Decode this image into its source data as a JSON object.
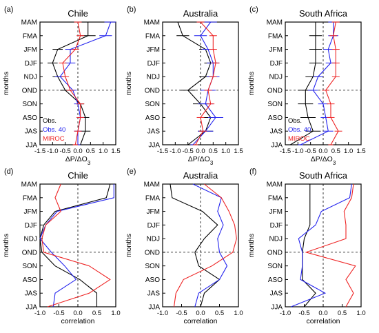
{
  "colors": {
    "obs": "#000000",
    "obs40": "#2222ee",
    "miroc": "#ee2222",
    "axis": "#000000"
  },
  "chart_data": [
    {
      "type": "line",
      "panel_label": "(a)",
      "title": "Chile",
      "xlabel": "ΔP/ΔO3",
      "ylabel": "months",
      "xlim": [
        -1.5,
        1.5
      ],
      "xticks": [
        -1.5,
        -1.0,
        -0.5,
        0.0,
        0.5,
        1.0,
        1.5
      ],
      "tick_labels": [
        "-1.5",
        "-1.0",
        "-0.5",
        "0.0",
        "0.5",
        "1.0",
        "1.5"
      ],
      "categories": [
        "MAM",
        "FMA",
        "JFM",
        "DJF",
        "NDJ",
        "OND",
        "SON",
        "ASO",
        "JAS",
        "JJA"
      ],
      "legend": [
        "Obs.",
        "Obs. 40",
        "MIROC"
      ],
      "series": [
        {
          "name": "Obs.",
          "values": [
            0.4,
            0.4,
            -0.8,
            -1.0,
            -0.8,
            -0.5,
            0.1,
            0.3,
            0.3,
            0.1
          ],
          "errors": [
            0.3,
            0.3,
            0.2,
            0.2,
            0.2,
            0.2,
            0.15,
            0.15,
            0.2,
            0.1
          ]
        },
        {
          "name": "Obs. 40",
          "values": [
            1.3,
            1.1,
            -0.3,
            -0.3,
            -0.7,
            -0.2,
            0.0,
            0.1,
            0.0,
            0.0
          ],
          "errors": [
            0.25,
            0.25,
            0.2,
            0.2,
            0.2,
            0.15,
            0.15,
            0.15,
            0.15,
            0.1
          ]
        },
        {
          "name": "MIROC",
          "values": [
            0.0,
            0.1,
            -0.1,
            -0.6,
            -0.5,
            -0.3,
            0.1,
            0.1,
            0.0,
            -0.1
          ],
          "errors": [
            0.15,
            0.15,
            0.15,
            0.15,
            0.15,
            0.15,
            0.15,
            0.15,
            0.15,
            0.1
          ]
        }
      ]
    },
    {
      "type": "line",
      "panel_label": "(b)",
      "title": "Australia",
      "xlabel": "ΔP/ΔO3",
      "ylabel": "months",
      "xlim": [
        -1.5,
        1.5
      ],
      "xticks": [
        -1.5,
        -1.0,
        -0.5,
        0.0,
        0.5,
        1.0,
        1.5
      ],
      "tick_labels": [
        "-1.5",
        "-1.0",
        "-0.5",
        "0.0",
        "0.5",
        "1.0",
        "1.5"
      ],
      "categories": [
        "MAM",
        "FMA",
        "JFM",
        "DJF",
        "NDJ",
        "OND",
        "SON",
        "ASO",
        "JAS",
        "JJA"
      ],
      "legend": [],
      "series": [
        {
          "name": "Obs.",
          "values": [
            -0.9,
            -0.7,
            0.2,
            0.4,
            0.2,
            -0.5,
            0.0,
            0.4,
            0.2,
            -0.5
          ],
          "errors": [
            0.25,
            0.25,
            0.25,
            0.25,
            0.25,
            0.3,
            0.3,
            0.3,
            0.3,
            0.1
          ]
        },
        {
          "name": "Obs. 40",
          "values": [
            0.4,
            0.0,
            0.3,
            0.5,
            0.5,
            0.3,
            0.2,
            0.6,
            0.2,
            -0.3
          ],
          "errors": [
            0.25,
            0.25,
            0.25,
            0.25,
            0.25,
            0.3,
            0.3,
            0.3,
            0.3,
            0.1
          ]
        },
        {
          "name": "MIROC",
          "values": [
            0.0,
            0.5,
            0.5,
            0.6,
            0.5,
            0.3,
            0.4,
            0.0,
            0.1,
            -0.2
          ],
          "errors": [
            0.15,
            0.15,
            0.15,
            0.15,
            0.15,
            0.15,
            0.15,
            0.15,
            0.15,
            0.1
          ]
        }
      ]
    },
    {
      "type": "line",
      "panel_label": "(c)",
      "title": "South Africa",
      "xlabel": "ΔP/ΔO3",
      "ylabel": "months",
      "xlim": [
        -1.5,
        1.5
      ],
      "xticks": [
        -1.5,
        -1.0,
        -0.5,
        0.0,
        0.5,
        1.0,
        1.5
      ],
      "tick_labels": [
        "-1.5",
        "-1.0",
        "-0.5",
        "0.0",
        "0.5",
        "1.0",
        "1.5"
      ],
      "categories": [
        "MAM",
        "FMA",
        "JFM",
        "DJF",
        "NDJ",
        "OND",
        "SON",
        "ASO",
        "JAS",
        "JJA"
      ],
      "legend": [
        "Obs.",
        "Obs. 40",
        "MIROC"
      ],
      "series": [
        {
          "name": "Obs.",
          "values": [
            -0.3,
            -0.3,
            -0.3,
            -0.3,
            -0.4,
            -0.7,
            -0.7,
            -0.6,
            -0.4,
            -1.3
          ],
          "errors": [
            0.25,
            0.25,
            0.25,
            0.25,
            0.3,
            0.3,
            0.3,
            0.3,
            0.3,
            0.1
          ]
        },
        {
          "name": "Obs. 40",
          "values": [
            0.4,
            0.4,
            0.2,
            0.3,
            -0.2,
            -0.4,
            0.0,
            0.1,
            0.2,
            -0.9
          ],
          "errors": [
            0.2,
            0.2,
            0.2,
            0.2,
            0.2,
            0.2,
            0.2,
            0.2,
            0.2,
            0.1
          ]
        },
        {
          "name": "MIROC",
          "values": [
            0.5,
            0.4,
            0.5,
            0.5,
            0.5,
            0.1,
            0.3,
            0.3,
            0.6,
            0.3
          ],
          "errors": [
            0.15,
            0.15,
            0.15,
            0.15,
            0.15,
            0.15,
            0.15,
            0.15,
            0.15,
            0.1
          ]
        }
      ]
    },
    {
      "type": "line",
      "panel_label": "(d)",
      "title": "Chile",
      "xlabel": "correlation",
      "ylabel": "months",
      "xlim": [
        -1.0,
        1.0
      ],
      "xticks": [
        -1.0,
        -0.5,
        0.0,
        0.5,
        1.0
      ],
      "tick_labels": [
        "-1.0",
        "-0.5",
        "0.0",
        "0.5",
        "1.0"
      ],
      "categories": [
        "MAM",
        "FMA",
        "JFM",
        "DJF",
        "NDJ",
        "OND",
        "SON",
        "ASO",
        "JAS",
        "JJA"
      ],
      "legend": [],
      "series": [
        {
          "name": "Obs.",
          "values": [
            0.85,
            0.75,
            -0.6,
            -0.9,
            -1.0,
            -0.95,
            -0.6,
            0.05,
            0.5,
            0.5
          ]
        },
        {
          "name": "Obs. 40",
          "values": [
            0.95,
            0.95,
            -0.55,
            -0.85,
            -1.0,
            -0.7,
            -0.35,
            -0.05,
            -0.6,
            -0.65
          ]
        },
        {
          "name": "MIROC",
          "values": [
            -0.45,
            -0.6,
            -0.45,
            -0.85,
            -0.95,
            -0.9,
            0.3,
            0.85,
            0.3,
            -0.8
          ]
        }
      ]
    },
    {
      "type": "line",
      "panel_label": "(e)",
      "title": "Australia",
      "xlabel": "correlation",
      "ylabel": "months",
      "xlim": [
        -1.0,
        1.0
      ],
      "xticks": [
        -1.0,
        -0.5,
        0.0,
        0.5,
        1.0
      ],
      "tick_labels": [
        "-1.0",
        "-0.5",
        "0.0",
        "0.5",
        "1.0"
      ],
      "categories": [
        "MAM",
        "FMA",
        "JFM",
        "DJF",
        "NDJ",
        "OND",
        "SON",
        "ASO",
        "JAS",
        "JJA"
      ],
      "legend": [],
      "series": [
        {
          "name": "Obs.",
          "values": [
            -0.8,
            -0.75,
            0.05,
            0.45,
            0.1,
            -0.15,
            -0.05,
            0.5,
            0.1,
            0.0
          ]
        },
        {
          "name": "Obs. 40",
          "values": [
            -0.2,
            0.55,
            0.45,
            0.6,
            0.45,
            0.5,
            0.7,
            0.5,
            -0.05,
            -0.15
          ]
        },
        {
          "name": "MIROC",
          "values": [
            0.1,
            0.55,
            0.75,
            0.9,
            0.95,
            0.85,
            0.3,
            -0.45,
            -0.65,
            -0.7
          ]
        }
      ]
    },
    {
      "type": "line",
      "panel_label": "(f)",
      "title": "South Africa",
      "xlabel": "correlation",
      "ylabel": "months",
      "xlim": [
        -1.0,
        1.0
      ],
      "xticks": [
        -1.0,
        -0.5,
        0.0,
        0.5,
        1.0
      ],
      "tick_labels": [
        "-1.0",
        "-0.5",
        "0.0",
        "0.5",
        "1.0"
      ],
      "categories": [
        "MAM",
        "FMA",
        "JFM",
        "DJF",
        "NDJ",
        "OND",
        "SON",
        "ASO",
        "JAS",
        "JJA"
      ],
      "legend": [],
      "series": [
        {
          "name": "Obs.",
          "values": [
            -0.35,
            -0.35,
            -0.35,
            -0.35,
            -0.5,
            -0.55,
            -0.55,
            -0.55,
            -0.2,
            -0.5
          ]
        },
        {
          "name": "Obs. 40",
          "values": [
            0.75,
            0.7,
            -0.05,
            -0.2,
            -0.65,
            -0.55,
            -0.55,
            -0.6,
            0.05,
            -0.85
          ]
        },
        {
          "name": "MIROC",
          "values": [
            0.8,
            0.75,
            0.55,
            0.6,
            0.6,
            -0.45,
            0.85,
            0.6,
            0.8,
            0.6
          ]
        }
      ]
    }
  ]
}
